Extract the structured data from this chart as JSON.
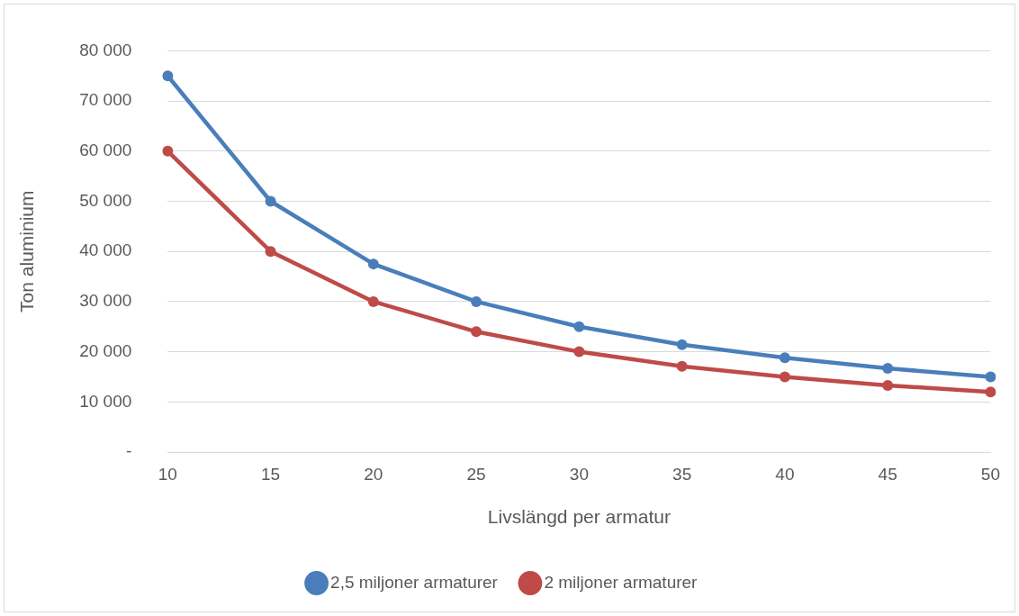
{
  "chart_data": {
    "type": "line",
    "xlabel": "Livslängd per armatur",
    "ylabel": "Ton aluminium",
    "categories": [
      "10",
      "15",
      "20",
      "25",
      "30",
      "35",
      "40",
      "45",
      "50"
    ],
    "series": [
      {
        "name": "2,5 miljoner armaturer",
        "color": "#4a7ebb",
        "values": [
          75000,
          50000,
          37500,
          30000,
          25000,
          21400,
          18800,
          16700,
          15000
        ]
      },
      {
        "name": "2 miljoner armaturer",
        "color": "#be4b48",
        "values": [
          60000,
          40000,
          30000,
          24000,
          20000,
          17100,
          15000,
          13300,
          12000
        ]
      }
    ],
    "ylim": [
      0,
      80000
    ],
    "yticks": [
      {
        "value": 0,
        "label": "-"
      },
      {
        "value": 10000,
        "label": "10 000"
      },
      {
        "value": 20000,
        "label": "20 000"
      },
      {
        "value": 30000,
        "label": "30 000"
      },
      {
        "value": 40000,
        "label": "40 000"
      },
      {
        "value": 50000,
        "label": "50 000"
      },
      {
        "value": 60000,
        "label": "60 000"
      },
      {
        "value": 70000,
        "label": "70 000"
      },
      {
        "value": 80000,
        "label": "80 000"
      }
    ],
    "grid": "y",
    "legend": "bottom",
    "marker": "circle",
    "line_style": "solid"
  }
}
